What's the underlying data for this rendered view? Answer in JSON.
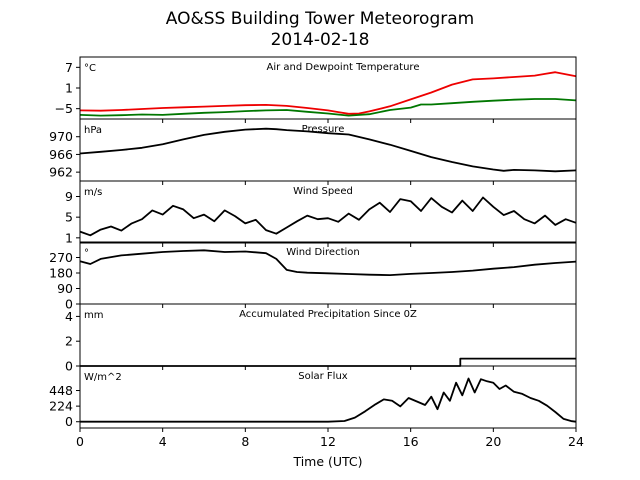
{
  "title_line1": "AO&SS Building Tower Meteorogram",
  "title_line2": "2014-02-18",
  "xlabel": "Time (UTC)",
  "colors": {
    "red": "#ee0000",
    "green": "#007700",
    "black": "#000000"
  },
  "chart_data": {
    "type": "line",
    "x_ticks": [
      0,
      4,
      8,
      12,
      16,
      20,
      24
    ],
    "xlim": [
      0,
      24
    ],
    "panels": [
      {
        "label": "Air and Dewpoint Temperature",
        "unit": "°C",
        "ylim": [
          -8,
          10
        ],
        "yticks": [
          -5,
          1,
          7
        ],
        "ytick_labels": [
          "−5",
          "1",
          "7"
        ],
        "series": [
          {
            "color": "#ee0000",
            "x": [
              0,
              1,
              2,
              3,
              4,
              5,
              6,
              7,
              8,
              9,
              10,
              11,
              12,
              12.5,
              13,
              13.5,
              14,
              15,
              16,
              17,
              18,
              19,
              20,
              21,
              22,
              22.5,
              23,
              24
            ],
            "y": [
              -5.5,
              -5.6,
              -5.4,
              -5.1,
              -4.8,
              -4.6,
              -4.4,
              -4.2,
              -4.0,
              -3.9,
              -4.2,
              -4.8,
              -5.5,
              -6.0,
              -6.5,
              -6.4,
              -5.8,
              -4.3,
              -2.3,
              -0.3,
              2.0,
              3.5,
              3.8,
              4.2,
              4.6,
              5.1,
              5.6,
              4.4
            ]
          },
          {
            "color": "#007700",
            "x": [
              0,
              1,
              2,
              3,
              4,
              5,
              6,
              7,
              8,
              9,
              10,
              11,
              12,
              13,
              14,
              15,
              16,
              16.5,
              17,
              18,
              19,
              20,
              21,
              22,
              23,
              24
            ],
            "y": [
              -6.8,
              -7.0,
              -6.9,
              -6.7,
              -6.8,
              -6.5,
              -6.2,
              -6.0,
              -5.7,
              -5.5,
              -5.4,
              -5.9,
              -6.4,
              -7.0,
              -6.6,
              -5.4,
              -4.7,
              -3.8,
              -3.8,
              -3.4,
              -3.0,
              -2.7,
              -2.4,
              -2.2,
              -2.2,
              -2.6
            ]
          }
        ]
      },
      {
        "label": "Pressure",
        "unit": "hPa",
        "ylim": [
          960,
          974
        ],
        "yticks": [
          962,
          966,
          970
        ],
        "ytick_labels": [
          "962",
          "966",
          "970"
        ],
        "series": [
          {
            "color": "#000000",
            "x": [
              0,
              1,
              2,
              3,
              4,
              5,
              6,
              7,
              8,
              9,
              9.5,
              10,
              11,
              12,
              13,
              14,
              15,
              16,
              17,
              18,
              19,
              20,
              20.5,
              21,
              22,
              23,
              24
            ],
            "y": [
              966.2,
              966.6,
              967.0,
              967.5,
              968.3,
              969.4,
              970.4,
              971.1,
              971.6,
              971.8,
              971.7,
              971.5,
              971.2,
              970.8,
              970.5,
              969.4,
              968.2,
              966.8,
              965.4,
              964.3,
              963.3,
              962.6,
              962.3,
              962.5,
              962.4,
              962.2,
              962.4
            ]
          }
        ]
      },
      {
        "label": "Wind Speed",
        "unit": "m/s",
        "ylim": [
          0,
          12
        ],
        "yticks": [
          1,
          5,
          9
        ],
        "ytick_labels": [
          "1",
          "5",
          "9"
        ],
        "series": [
          {
            "color": "#000000",
            "x": [
              0,
              0.5,
              1,
              1.5,
              2,
              2.5,
              3,
              3.5,
              4,
              4.5,
              5,
              5.5,
              6,
              6.5,
              7,
              7.5,
              8,
              8.5,
              9,
              9.5,
              10,
              10.5,
              11,
              11.5,
              12,
              12.5,
              13,
              13.5,
              14,
              14.5,
              15,
              15.5,
              16,
              16.5,
              17,
              17.5,
              18,
              18.5,
              19,
              19.5,
              20,
              20.5,
              21,
              21.5,
              22,
              22.5,
              23,
              23.5,
              24
            ],
            "y": [
              2.2,
              1.5,
              2.6,
              3.2,
              2.4,
              3.8,
              4.6,
              6.3,
              5.5,
              7.2,
              6.5,
              4.8,
              5.5,
              4.2,
              6.3,
              5.2,
              3.8,
              4.5,
              2.5,
              1.8,
              3.0,
              4.2,
              5.3,
              4.6,
              4.8,
              4.1,
              5.7,
              4.5,
              6.5,
              7.8,
              6.0,
              8.5,
              8.1,
              6.2,
              8.7,
              7.0,
              5.9,
              8.2,
              6.2,
              8.8,
              7.0,
              5.4,
              6.2,
              4.6,
              3.8,
              5.3,
              3.5,
              4.6,
              3.9
            ]
          }
        ]
      },
      {
        "label": "Wind Direction",
        "unit": "°",
        "ylim": [
          0,
          360
        ],
        "yticks": [
          0,
          90,
          180,
          270
        ],
        "ytick_labels": [
          "0",
          "90",
          "180",
          "270"
        ],
        "series": [
          {
            "color": "#000000",
            "x": [
              0,
              0.5,
              1,
              2,
              3,
              4,
              5,
              6,
              7,
              8,
              9,
              9.5,
              10,
              10.5,
              11,
              12,
              13,
              14,
              15,
              16,
              17,
              18,
              19,
              20,
              21,
              22,
              23,
              24
            ],
            "y": [
              248,
              232,
              262,
              282,
              292,
              302,
              308,
              312,
              302,
              305,
              295,
              262,
              198,
              186,
              182,
              178,
              174,
              170,
              168,
              175,
              180,
              186,
              194,
              205,
              214,
              228,
              238,
              246
            ]
          }
        ]
      },
      {
        "label": "Accumulated Precipitation Since 0Z",
        "unit": "mm",
        "ylim": [
          0,
          5
        ],
        "yticks": [
          0,
          2,
          4
        ],
        "ytick_labels": [
          "0",
          "2",
          "4"
        ],
        "series": [
          {
            "color": "#000000",
            "x": [
              0,
              18.4,
              18.4,
              24
            ],
            "y": [
              0,
              0,
              0.6,
              0.6
            ]
          }
        ]
      },
      {
        "label": "Solar Flux",
        "unit": "W/m^2",
        "ylim": [
          -90,
          800
        ],
        "yticks": [
          0,
          224,
          448
        ],
        "ytick_labels": [
          "0",
          "224",
          "448"
        ],
        "series": [
          {
            "color": "#000000",
            "x": [
              0,
              12,
              12.8,
              13.3,
              13.8,
              14.3,
              14.7,
              15.1,
              15.5,
              15.9,
              16.3,
              16.7,
              17.0,
              17.3,
              17.6,
              17.9,
              18.2,
              18.5,
              18.8,
              19.1,
              19.4,
              19.7,
              20.0,
              20.3,
              20.6,
              21.0,
              21.4,
              21.8,
              22.2,
              22.6,
              23.0,
              23.4,
              23.8,
              24
            ],
            "y": [
              0,
              0,
              10,
              60,
              150,
              250,
              320,
              300,
              220,
              340,
              290,
              240,
              360,
              180,
              420,
              300,
              560,
              380,
              620,
              420,
              610,
              580,
              560,
              470,
              520,
              430,
              400,
              340,
              300,
              230,
              140,
              40,
              8,
              0
            ]
          }
        ]
      }
    ]
  }
}
